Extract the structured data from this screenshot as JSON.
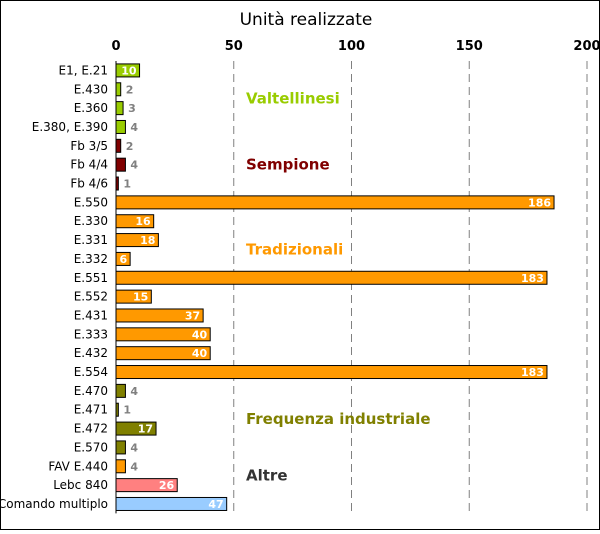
{
  "chart_data": {
    "type": "bar",
    "orientation": "horizontal",
    "title": "Unità realizzate",
    "xlim": [
      0,
      200
    ],
    "xticks": [
      "0",
      "50",
      "100",
      "150",
      "200"
    ],
    "xtick_values": [
      0,
      50,
      100,
      150,
      200
    ],
    "grid": "vertical-dashed",
    "categories": [
      "E1, E.21",
      "E.430",
      "E.360",
      "E.380, E.390",
      "Fb 3/5",
      "Fb 4/4",
      "Fb 4/6",
      "E.550",
      "E.330",
      "E.331",
      "E.332",
      "E.551",
      "E.552",
      "E.431",
      "E.333",
      "E.432",
      "E.554",
      "E.470",
      "E.471",
      "E.472",
      "E.570",
      "FAV E.440",
      "Lebc 840",
      "Comando multiplo"
    ],
    "values": [
      10,
      2,
      3,
      4,
      2,
      4,
      1,
      186,
      16,
      18,
      6,
      183,
      15,
      37,
      40,
      40,
      183,
      4,
      1,
      17,
      4,
      4,
      26,
      47
    ],
    "bar_colors": [
      "#99cc00",
      "#99cc00",
      "#99cc00",
      "#99cc00",
      "#800000",
      "#800000",
      "#800000",
      "#ff9900",
      "#ff9900",
      "#ff9900",
      "#ff9900",
      "#ff9900",
      "#ff9900",
      "#ff9900",
      "#ff9900",
      "#ff9900",
      "#ff9900",
      "#808000",
      "#808000",
      "#808000",
      "#808000",
      "#ff9900",
      "#ff8080",
      "#99ccff"
    ],
    "annotations": [
      {
        "text": "Valtellinesi",
        "color": "#99cc00"
      },
      {
        "text": "Sempione",
        "color": "#800000"
      },
      {
        "text": "Tradizionali",
        "color": "#ff9900"
      },
      {
        "text": "Frequenza industriale",
        "color": "#808000"
      },
      {
        "text": "Altre",
        "color": "#333333"
      }
    ]
  }
}
